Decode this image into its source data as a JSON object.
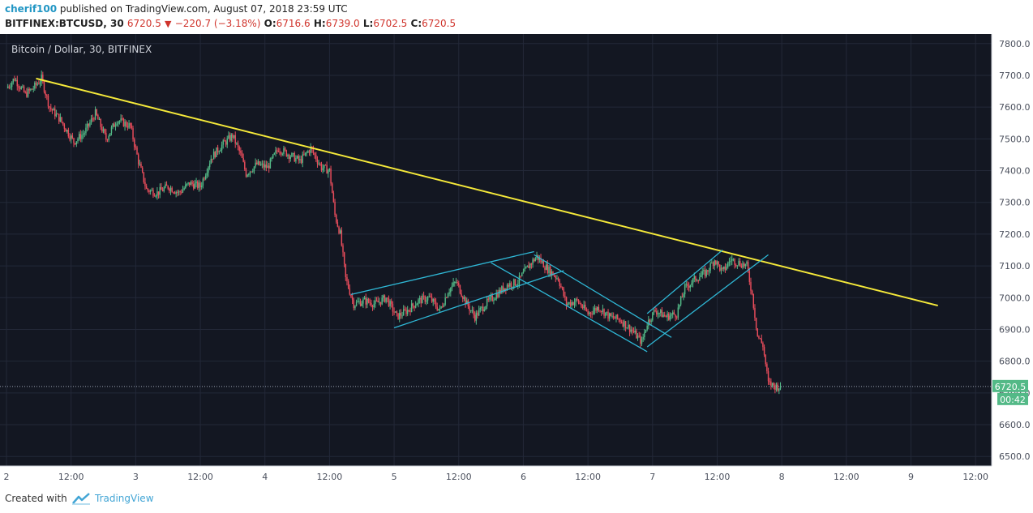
{
  "header": {
    "user": "cherif100",
    "published_text": " published on TradingView.com, August 07, 2018 23:59 UTC",
    "symbol": "BITFINEX:BTCUSD, 30",
    "last": "6720.5",
    "change": "−220.7 (−3.18%)",
    "o_label": "O:",
    "o_value": "6716.6",
    "h_label": "H:",
    "h_value": "6739.0",
    "l_label": "L:",
    "l_value": "6702.5",
    "c_label": "C:",
    "c_value": "6720.5"
  },
  "footer": {
    "created_with": "Created with",
    "brand": "TradingView"
  },
  "chart_data": {
    "type": "candlestick",
    "title": "Bitcoin / Dollar, 30, BITFINEX",
    "interval": "30",
    "ylim": [
      6470,
      7830
    ],
    "y_ticks": [
      6500,
      6600,
      6700,
      6800,
      6900,
      7000,
      7100,
      7200,
      7300,
      7400,
      7500,
      7600,
      7700,
      7800
    ],
    "x_ticks": [
      {
        "t": 0,
        "label": "2"
      },
      {
        "t": 24,
        "label": "12:00"
      },
      {
        "t": 48,
        "label": "3"
      },
      {
        "t": 72,
        "label": "12:00"
      },
      {
        "t": 96,
        "label": "4"
      },
      {
        "t": 120,
        "label": "12:00"
      },
      {
        "t": 144,
        "label": "5"
      },
      {
        "t": 168,
        "label": "12:00"
      },
      {
        "t": 192,
        "label": "6"
      },
      {
        "t": 216,
        "label": "12:00"
      },
      {
        "t": 240,
        "label": "7"
      },
      {
        "t": 264,
        "label": "12:00"
      },
      {
        "t": 288,
        "label": "8"
      },
      {
        "t": 312,
        "label": "12:00"
      },
      {
        "t": 336,
        "label": "9"
      },
      {
        "t": 360,
        "label": "12:00"
      }
    ],
    "time_unit": "hours since Aug 2 00:00 UTC",
    "last_price": 6720.5,
    "last_price_label": "6720.5",
    "countdown_label": "00:42",
    "up_color": "#53b987",
    "down_color": "#eb4d5c",
    "background": "#131722",
    "grid": true,
    "price_path": [
      {
        "t": 0,
        "p": 7660
      },
      {
        "t": 3,
        "p": 7690
      },
      {
        "t": 7,
        "p": 7640
      },
      {
        "t": 10,
        "p": 7660
      },
      {
        "t": 13,
        "p": 7690
      },
      {
        "t": 16,
        "p": 7600
      },
      {
        "t": 20,
        "p": 7560
      },
      {
        "t": 25,
        "p": 7490
      },
      {
        "t": 29,
        "p": 7520
      },
      {
        "t": 33,
        "p": 7580
      },
      {
        "t": 37,
        "p": 7500
      },
      {
        "t": 41,
        "p": 7560
      },
      {
        "t": 46,
        "p": 7540
      },
      {
        "t": 49,
        "p": 7430
      },
      {
        "t": 52,
        "p": 7340
      },
      {
        "t": 56,
        "p": 7330
      },
      {
        "t": 60,
        "p": 7350
      },
      {
        "t": 64,
        "p": 7330
      },
      {
        "t": 68,
        "p": 7360
      },
      {
        "t": 72,
        "p": 7350
      },
      {
        "t": 76,
        "p": 7440
      },
      {
        "t": 80,
        "p": 7480
      },
      {
        "t": 84,
        "p": 7510
      },
      {
        "t": 87,
        "p": 7450
      },
      {
        "t": 89,
        "p": 7390
      },
      {
        "t": 93,
        "p": 7420
      },
      {
        "t": 97,
        "p": 7410
      },
      {
        "t": 101,
        "p": 7470
      },
      {
        "t": 105,
        "p": 7450
      },
      {
        "t": 109,
        "p": 7430
      },
      {
        "t": 113,
        "p": 7470
      },
      {
        "t": 117,
        "p": 7410
      },
      {
        "t": 120,
        "p": 7400
      },
      {
        "t": 122,
        "p": 7260
      },
      {
        "t": 124,
        "p": 7200
      },
      {
        "t": 126,
        "p": 7060
      },
      {
        "t": 129,
        "p": 6980
      },
      {
        "t": 133,
        "p": 6990
      },
      {
        "t": 137,
        "p": 6980
      },
      {
        "t": 141,
        "p": 7000
      },
      {
        "t": 145,
        "p": 6940
      },
      {
        "t": 149,
        "p": 6960
      },
      {
        "t": 153,
        "p": 6990
      },
      {
        "t": 157,
        "p": 7000
      },
      {
        "t": 161,
        "p": 6960
      },
      {
        "t": 164,
        "p": 7020
      },
      {
        "t": 167,
        "p": 7050
      },
      {
        "t": 171,
        "p": 6980
      },
      {
        "t": 174,
        "p": 6940
      },
      {
        "t": 178,
        "p": 6980
      },
      {
        "t": 182,
        "p": 7010
      },
      {
        "t": 186,
        "p": 7040
      },
      {
        "t": 190,
        "p": 7050
      },
      {
        "t": 194,
        "p": 7100
      },
      {
        "t": 197,
        "p": 7130
      },
      {
        "t": 201,
        "p": 7090
      },
      {
        "t": 205,
        "p": 7060
      },
      {
        "t": 208,
        "p": 6980
      },
      {
        "t": 212,
        "p": 6990
      },
      {
        "t": 216,
        "p": 6950
      },
      {
        "t": 220,
        "p": 6970
      },
      {
        "t": 224,
        "p": 6940
      },
      {
        "t": 228,
        "p": 6930
      },
      {
        "t": 232,
        "p": 6900
      },
      {
        "t": 236,
        "p": 6860
      },
      {
        "t": 238,
        "p": 6920
      },
      {
        "t": 241,
        "p": 6960
      },
      {
        "t": 245,
        "p": 6940
      },
      {
        "t": 249,
        "p": 6950
      },
      {
        "t": 252,
        "p": 7030
      },
      {
        "t": 256,
        "p": 7060
      },
      {
        "t": 260,
        "p": 7080
      },
      {
        "t": 263,
        "p": 7120
      },
      {
        "t": 266,
        "p": 7080
      },
      {
        "t": 269,
        "p": 7120
      },
      {
        "t": 272,
        "p": 7110
      },
      {
        "t": 275,
        "p": 7100
      },
      {
        "t": 277,
        "p": 7010
      },
      {
        "t": 279,
        "p": 6880
      },
      {
        "t": 281,
        "p": 6850
      },
      {
        "t": 283,
        "p": 6730
      },
      {
        "t": 286,
        "p": 6720
      },
      {
        "t": 287.5,
        "p": 6720.5
      }
    ],
    "trendlines": [
      {
        "name": "downtrend",
        "color": "#f5e93a",
        "points": [
          {
            "t": 11,
            "p": 7690
          },
          {
            "t": 346,
            "p": 6975
          }
        ]
      },
      {
        "name": "channel-1-lower",
        "color": "#2fb8d6",
        "points": [
          {
            "t": 144,
            "p": 6905
          },
          {
            "t": 207,
            "p": 7085
          }
        ]
      },
      {
        "name": "channel-1-upper",
        "color": "#2fb8d6",
        "points": [
          {
            "t": 128,
            "p": 7010
          },
          {
            "t": 196,
            "p": 7145
          }
        ]
      },
      {
        "name": "channel-2-upper",
        "color": "#2fb8d6",
        "points": [
          {
            "t": 196,
            "p": 7135
          },
          {
            "t": 247,
            "p": 6875
          }
        ]
      },
      {
        "name": "channel-2-lower",
        "color": "#2fb8d6",
        "points": [
          {
            "t": 180,
            "p": 7110
          },
          {
            "t": 238,
            "p": 6830
          }
        ]
      },
      {
        "name": "channel-3-upper",
        "color": "#2fb8d6",
        "points": [
          {
            "t": 238,
            "p": 6950
          },
          {
            "t": 266,
            "p": 7150
          }
        ]
      },
      {
        "name": "channel-3-lower",
        "color": "#2fb8d6",
        "points": [
          {
            "t": 238,
            "p": 6845
          },
          {
            "t": 283,
            "p": 7135
          }
        ]
      }
    ]
  }
}
